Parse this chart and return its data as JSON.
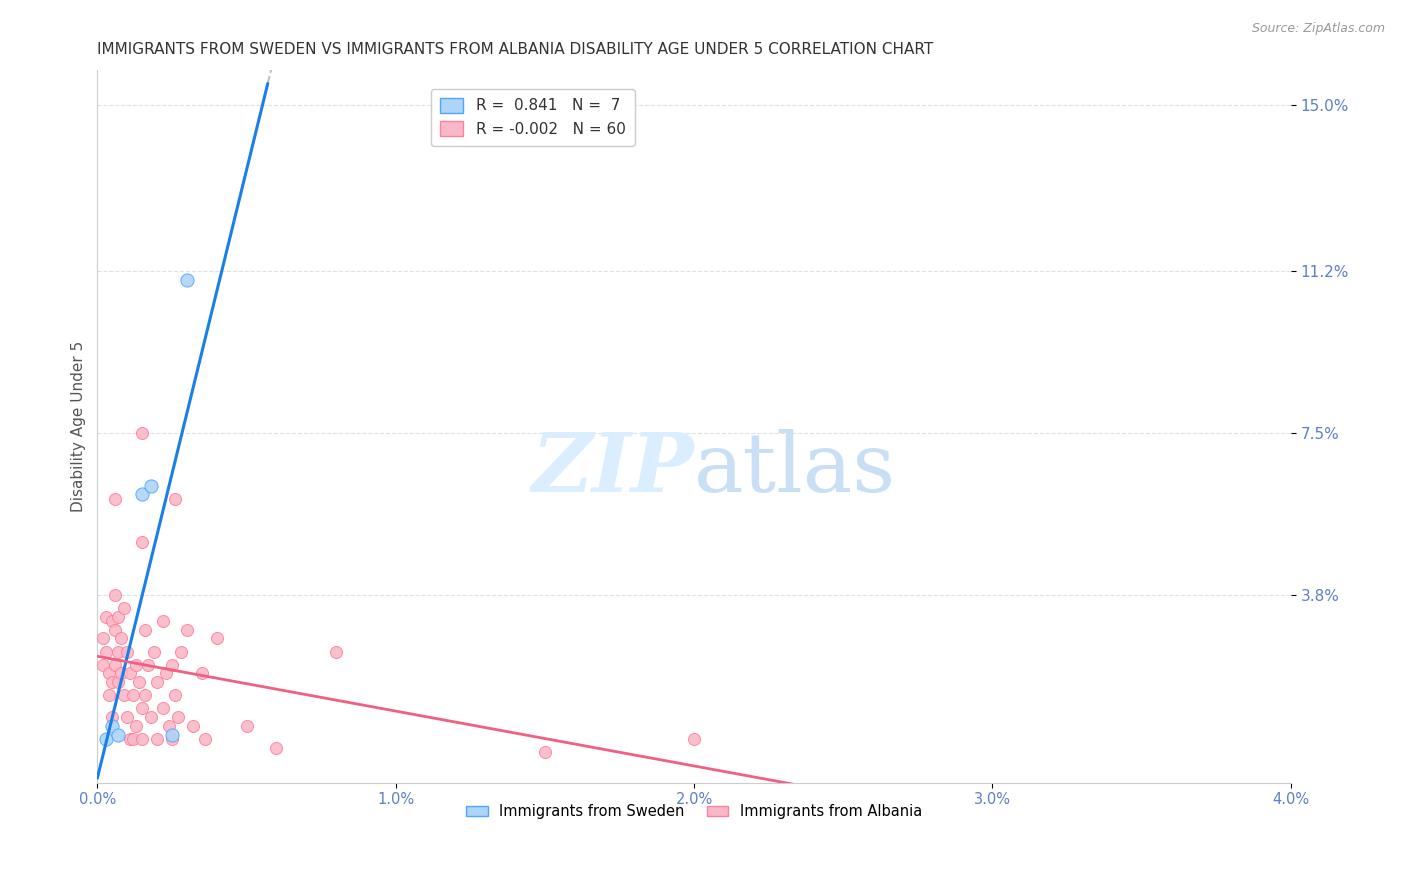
{
  "title": "IMMIGRANTS FROM SWEDEN VS IMMIGRANTS FROM ALBANIA DISABILITY AGE UNDER 5 CORRELATION CHART",
  "source": "Source: ZipAtlas.com",
  "ylabel": "Disability Age Under 5",
  "ytick_labels": [
    "15.0%",
    "11.2%",
    "7.5%",
    "3.8%"
  ],
  "ytick_values": [
    0.15,
    0.112,
    0.075,
    0.038
  ],
  "xtick_values": [
    0.0,
    0.01,
    0.02,
    0.03,
    0.04
  ],
  "xtick_labels": [
    "0.0%",
    "1.0%",
    "2.0%",
    "3.0%",
    "4.0%"
  ],
  "xlim": [
    0.0,
    0.04
  ],
  "ylim": [
    -0.005,
    0.158
  ],
  "legend_r1": "R =  0.841   N =  7",
  "legend_r2": "R = -0.002   N = 60",
  "legend1_label": "Immigrants from Sweden",
  "legend2_label": "Immigrants from Albania",
  "sweden_color": "#aed4f7",
  "albania_color": "#f9b8c8",
  "sweden_edge_color": "#4da6ff",
  "albania_edge_color": "#ff8099",
  "sweden_line_color": "#1a7fe8",
  "albania_line_color": "#f06080",
  "regression_dashed_color": "#c0c0c0",
  "title_color": "#333333",
  "axis_tick_color": "#5b7fcc",
  "source_color": "#999999",
  "watermark_color": "#daeeff",
  "background_color": "#ffffff",
  "grid_color": "#e0e0e0",
  "sweden_points": [
    [
      0.0003,
      0.005
    ],
    [
      0.0005,
      0.008
    ],
    [
      0.0007,
      0.006
    ],
    [
      0.0015,
      0.061
    ],
    [
      0.0018,
      0.063
    ],
    [
      0.0025,
      0.006
    ],
    [
      0.003,
      0.11
    ]
  ],
  "albania_points": [
    [
      0.0002,
      0.028
    ],
    [
      0.0002,
      0.022
    ],
    [
      0.0003,
      0.033
    ],
    [
      0.0003,
      0.025
    ],
    [
      0.0004,
      0.02
    ],
    [
      0.0004,
      0.015
    ],
    [
      0.0005,
      0.032
    ],
    [
      0.0005,
      0.018
    ],
    [
      0.0005,
      0.01
    ],
    [
      0.0006,
      0.06
    ],
    [
      0.0006,
      0.038
    ],
    [
      0.0006,
      0.03
    ],
    [
      0.0006,
      0.022
    ],
    [
      0.0007,
      0.033
    ],
    [
      0.0007,
      0.025
    ],
    [
      0.0007,
      0.018
    ],
    [
      0.0008,
      0.028
    ],
    [
      0.0008,
      0.02
    ],
    [
      0.0009,
      0.035
    ],
    [
      0.0009,
      0.015
    ],
    [
      0.001,
      0.025
    ],
    [
      0.001,
      0.01
    ],
    [
      0.0011,
      0.02
    ],
    [
      0.0011,
      0.005
    ],
    [
      0.0012,
      0.015
    ],
    [
      0.0012,
      0.005
    ],
    [
      0.0013,
      0.022
    ],
    [
      0.0013,
      0.008
    ],
    [
      0.0014,
      0.018
    ],
    [
      0.0015,
      0.075
    ],
    [
      0.0015,
      0.05
    ],
    [
      0.0015,
      0.012
    ],
    [
      0.0015,
      0.005
    ],
    [
      0.0016,
      0.03
    ],
    [
      0.0016,
      0.015
    ],
    [
      0.0017,
      0.022
    ],
    [
      0.0018,
      0.01
    ],
    [
      0.0019,
      0.025
    ],
    [
      0.002,
      0.018
    ],
    [
      0.002,
      0.005
    ],
    [
      0.0022,
      0.032
    ],
    [
      0.0022,
      0.012
    ],
    [
      0.0023,
      0.02
    ],
    [
      0.0024,
      0.008
    ],
    [
      0.0025,
      0.022
    ],
    [
      0.0025,
      0.005
    ],
    [
      0.0026,
      0.06
    ],
    [
      0.0026,
      0.015
    ],
    [
      0.0027,
      0.01
    ],
    [
      0.0028,
      0.025
    ],
    [
      0.003,
      0.03
    ],
    [
      0.0032,
      0.008
    ],
    [
      0.0035,
      0.02
    ],
    [
      0.0036,
      0.005
    ],
    [
      0.004,
      0.028
    ],
    [
      0.005,
      0.008
    ],
    [
      0.006,
      0.003
    ],
    [
      0.008,
      0.025
    ],
    [
      0.015,
      0.002
    ],
    [
      0.02,
      0.005
    ]
  ],
  "sweden_marker_size": 90,
  "albania_marker_size": 75
}
